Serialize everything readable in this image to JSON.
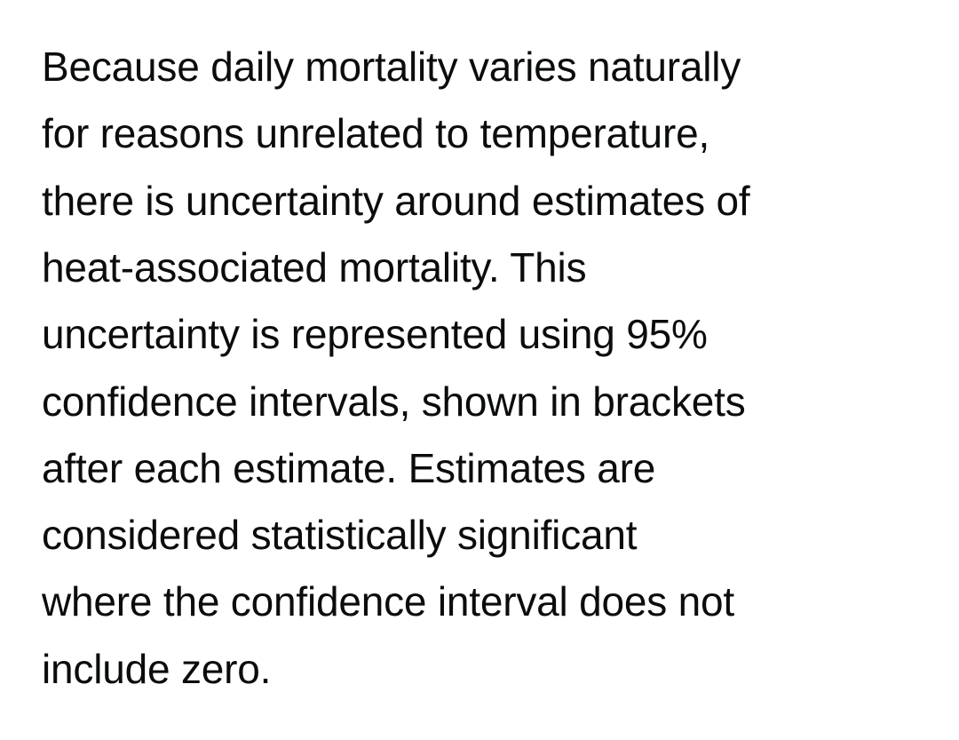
{
  "paragraph": {
    "lines": [
      "Because daily mortality varies naturally",
      "for reasons unrelated to temperature,",
      "there is uncertainty around estimates of",
      "heat-associated mortality. This",
      "uncertainty is represented using 95%",
      "confidence intervals, shown in brackets",
      "after each estimate. Estimates are",
      "considered statistically significant",
      "where the confidence interval does not",
      "include zero."
    ]
  }
}
